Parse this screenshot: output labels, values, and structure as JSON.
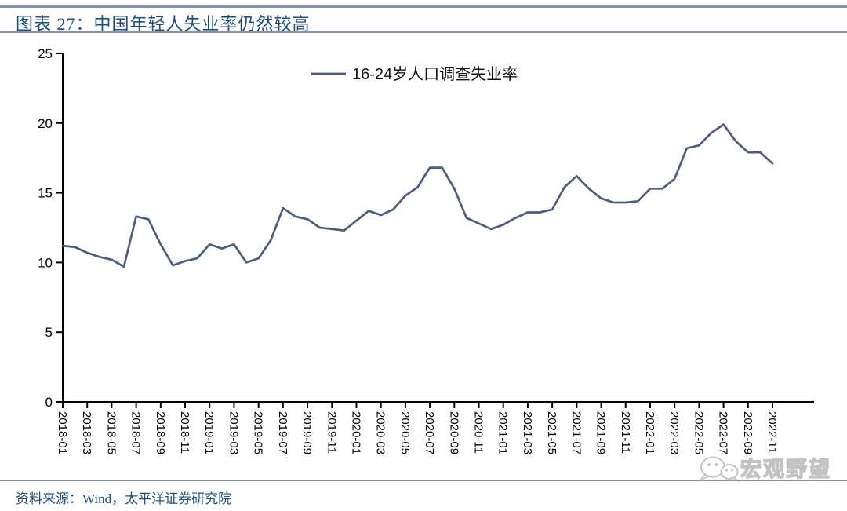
{
  "header": {
    "title": "图表 27：中国年轻人失业率仍然较高"
  },
  "footer": {
    "source": "资料来源：Wind，太平洋证券研究院"
  },
  "watermark": {
    "text": "宏观野望",
    "icon": "wechat-bubbles-icon"
  },
  "colors": {
    "accent_blue": "#1f4e79",
    "rule": "#8493ae",
    "line": "#4d5c7c",
    "axis": "#000000",
    "watermark_stroke": "#c3c3c3"
  },
  "chart_data": {
    "type": "line",
    "title": "",
    "legend": [
      "16-24岁人口调查失业率"
    ],
    "legend_position": "top-center",
    "grid": false,
    "ylim": [
      0,
      25
    ],
    "yticks": [
      0,
      5,
      10,
      15,
      20,
      25
    ],
    "x": [
      "2018-01",
      "2018-02",
      "2018-03",
      "2018-04",
      "2018-05",
      "2018-06",
      "2018-07",
      "2018-08",
      "2018-09",
      "2018-10",
      "2018-11",
      "2018-12",
      "2019-01",
      "2019-02",
      "2019-03",
      "2019-04",
      "2019-05",
      "2019-06",
      "2019-07",
      "2019-08",
      "2019-09",
      "2019-10",
      "2019-11",
      "2019-12",
      "2020-01",
      "2020-02",
      "2020-03",
      "2020-04",
      "2020-05",
      "2020-06",
      "2020-07",
      "2020-08",
      "2020-09",
      "2020-10",
      "2020-11",
      "2020-12",
      "2021-01",
      "2021-02",
      "2021-03",
      "2021-04",
      "2021-05",
      "2021-06",
      "2021-07",
      "2021-08",
      "2021-09",
      "2021-10",
      "2021-11",
      "2021-12",
      "2022-01",
      "2022-02",
      "2022-03",
      "2022-04",
      "2022-05",
      "2022-06",
      "2022-07",
      "2022-08",
      "2022-09",
      "2022-10",
      "2022-11"
    ],
    "xtick_labels": [
      "2018-01",
      "2018-03",
      "2018-05",
      "2018-07",
      "2018-09",
      "2018-11",
      "2019-01",
      "2019-03",
      "2019-05",
      "2019-07",
      "2019-09",
      "2019-11",
      "2020-01",
      "2020-03",
      "2020-05",
      "2020-07",
      "2020-09",
      "2020-11",
      "2021-01",
      "2021-03",
      "2021-05",
      "2021-07",
      "2021-09",
      "2021-11",
      "2022-01",
      "2022-03",
      "2022-05",
      "2022-07",
      "2022-09",
      "2022-11"
    ],
    "series": [
      {
        "name": "16-24岁人口调查失业率",
        "color": "#4d5c7c",
        "values": [
          11.2,
          11.1,
          10.7,
          10.4,
          10.2,
          9.7,
          13.3,
          13.1,
          11.3,
          9.8,
          10.1,
          10.3,
          11.3,
          11.0,
          11.3,
          10.0,
          10.3,
          11.6,
          13.9,
          13.3,
          13.1,
          12.5,
          12.4,
          12.3,
          13.0,
          13.7,
          13.4,
          13.8,
          14.8,
          15.4,
          16.8,
          16.8,
          15.3,
          13.2,
          12.8,
          12.4,
          12.7,
          13.2,
          13.6,
          13.6,
          13.8,
          15.4,
          16.2,
          15.3,
          14.6,
          14.3,
          14.3,
          14.4,
          15.3,
          15.3,
          16.0,
          18.2,
          18.4,
          19.3,
          19.9,
          18.7,
          17.9,
          17.9,
          17.1
        ]
      }
    ]
  }
}
